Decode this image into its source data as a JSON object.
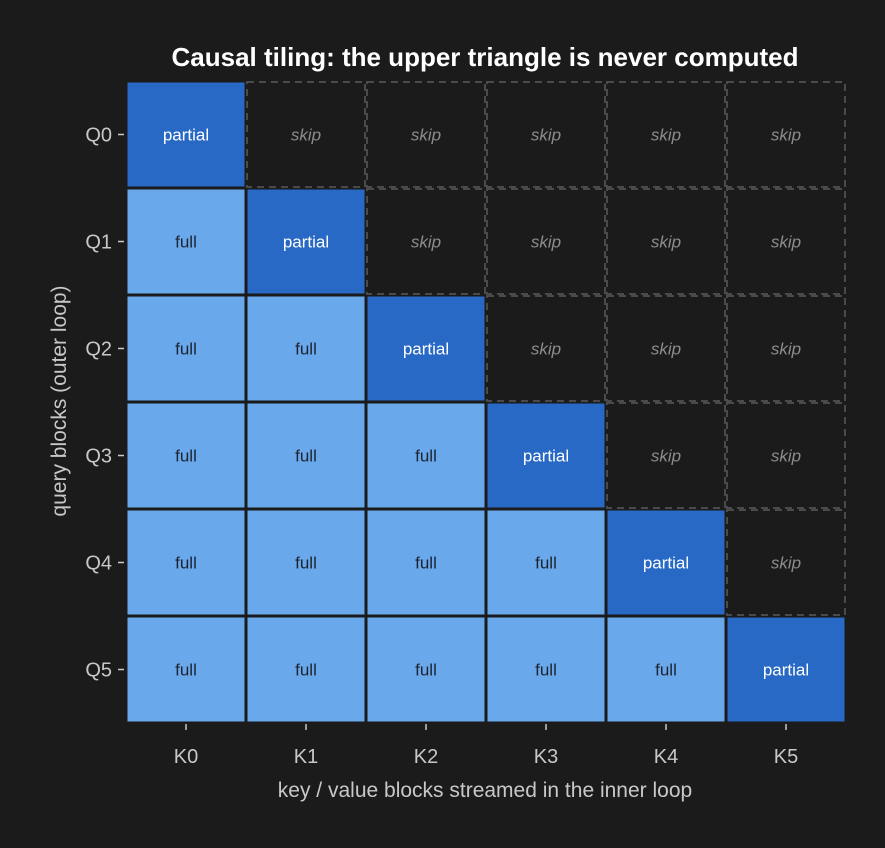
{
  "chart_data": {
    "type": "heatmap",
    "title": "Causal tiling: the upper triangle is never computed",
    "xlabel": "key / value blocks streamed in the inner loop",
    "ylabel": "query blocks (outer loop)",
    "x_categories": [
      "K0",
      "K1",
      "K2",
      "K3",
      "K4",
      "K5"
    ],
    "y_categories": [
      "Q0",
      "Q1",
      "Q2",
      "Q3",
      "Q4",
      "Q5"
    ],
    "cells": [
      [
        "partial",
        "skip",
        "skip",
        "skip",
        "skip",
        "skip"
      ],
      [
        "full",
        "partial",
        "skip",
        "skip",
        "skip",
        "skip"
      ],
      [
        "full",
        "full",
        "partial",
        "skip",
        "skip",
        "skip"
      ],
      [
        "full",
        "full",
        "full",
        "partial",
        "skip",
        "skip"
      ],
      [
        "full",
        "full",
        "full",
        "full",
        "partial",
        "skip"
      ],
      [
        "full",
        "full",
        "full",
        "full",
        "full",
        "partial"
      ]
    ],
    "colors": {
      "background": "#1b1b1b",
      "full": "#6aa8ec",
      "partial": "#2769c4",
      "skip_border": "#4a4a4a",
      "skip_text": "#8c8c8c",
      "full_text": "#1c2430",
      "partial_text": "#ffffff"
    }
  }
}
